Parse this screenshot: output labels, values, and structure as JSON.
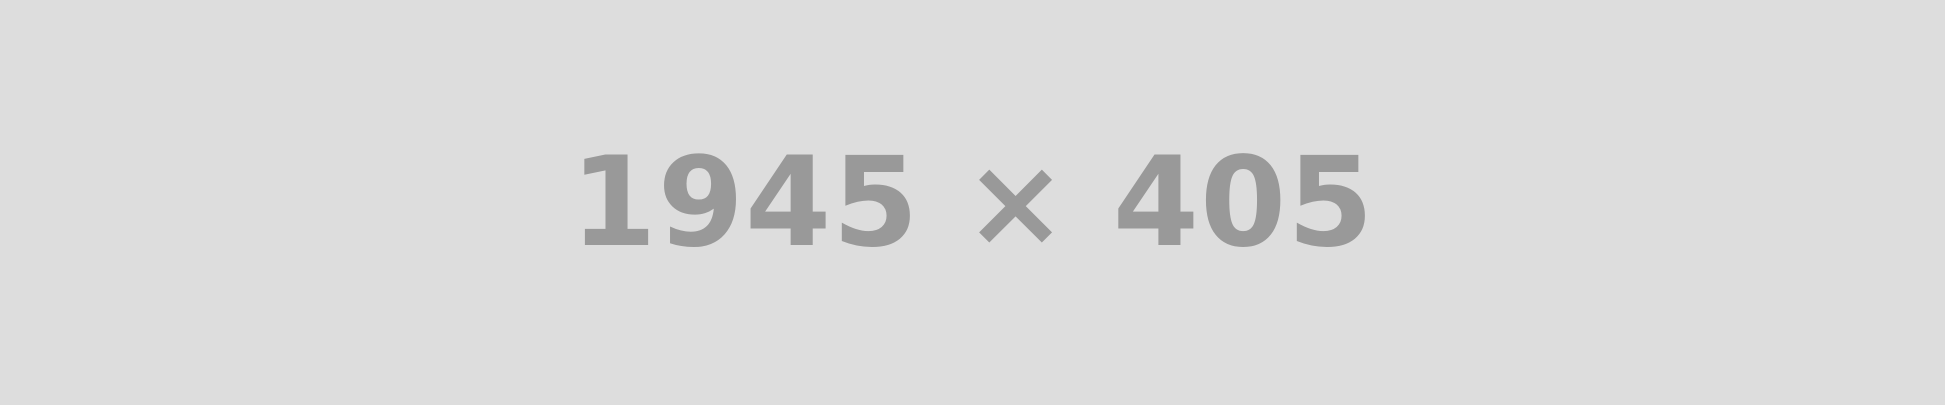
{
  "image": {
    "label": "1945 × 405",
    "background_color": "#dddddd",
    "text_color": "#999999"
  }
}
